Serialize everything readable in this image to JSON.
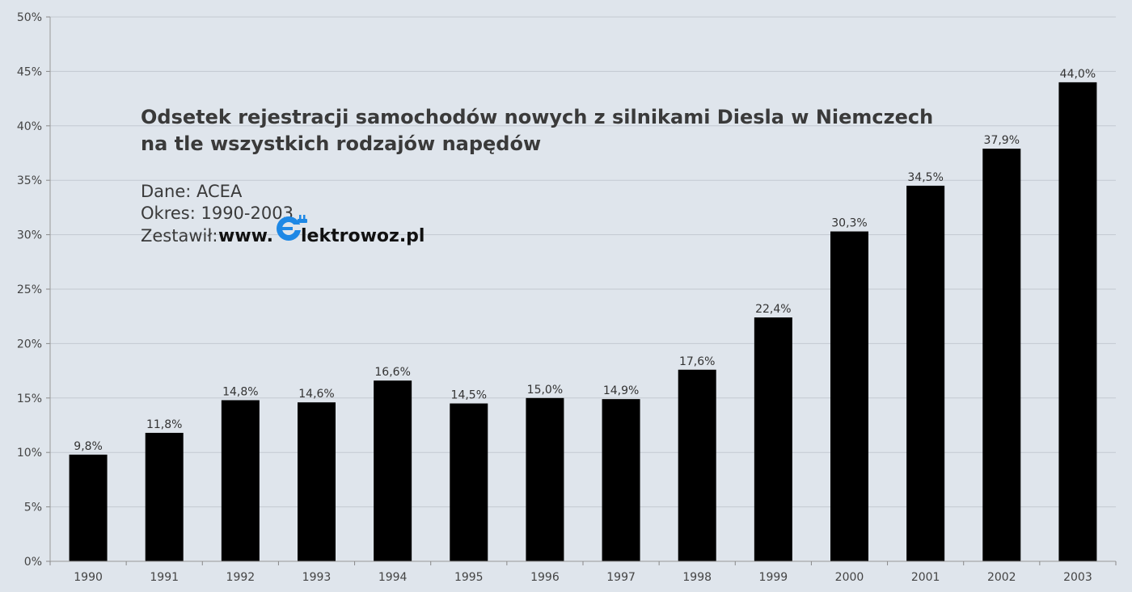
{
  "chart_data": {
    "type": "bar",
    "title_lines": [
      "Odsetek rejestracji samochodów nowych z silnikami Diesla w Niemczech",
      "na tle wszystkich rodzajów napędów"
    ],
    "source_line": "Dane: ACEA",
    "period_line": "Okres: 1990-2003",
    "author_prefix": "Zestawił:",
    "brand_prefix": "www.",
    "brand_suffix": "lektrowoz.pl",
    "logo_icon": "elektrowoz-plug-e-icon",
    "categories": [
      "1990",
      "1991",
      "1992",
      "1993",
      "1994",
      "1995",
      "1996",
      "1997",
      "1998",
      "1999",
      "2000",
      "2001",
      "2002",
      "2003"
    ],
    "values": [
      9.8,
      11.8,
      14.8,
      14.6,
      16.6,
      14.5,
      15.0,
      14.9,
      17.6,
      22.4,
      30.3,
      34.5,
      37.9,
      44.0
    ],
    "value_labels": [
      "9,8%",
      "11,8%",
      "14,8%",
      "14,6%",
      "16,6%",
      "14,5%",
      "15,0%",
      "14,9%",
      "17,6%",
      "22,4%",
      "30,3%",
      "34,5%",
      "37,9%",
      "44,0%"
    ],
    "y_ticks": [
      0,
      5,
      10,
      15,
      20,
      25,
      30,
      35,
      40,
      45,
      50
    ],
    "y_tick_labels": [
      "0%",
      "5%",
      "10%",
      "15%",
      "20%",
      "25%",
      "30%",
      "35%",
      "40%",
      "45%",
      "50%"
    ],
    "ylim": [
      0,
      50
    ],
    "grid": true,
    "xlabel": "",
    "ylabel": "",
    "colors": {
      "bar": "#000000",
      "grid": "#c3c9d1",
      "background": "#dfe5ec",
      "logo": "#1e88e5"
    }
  }
}
